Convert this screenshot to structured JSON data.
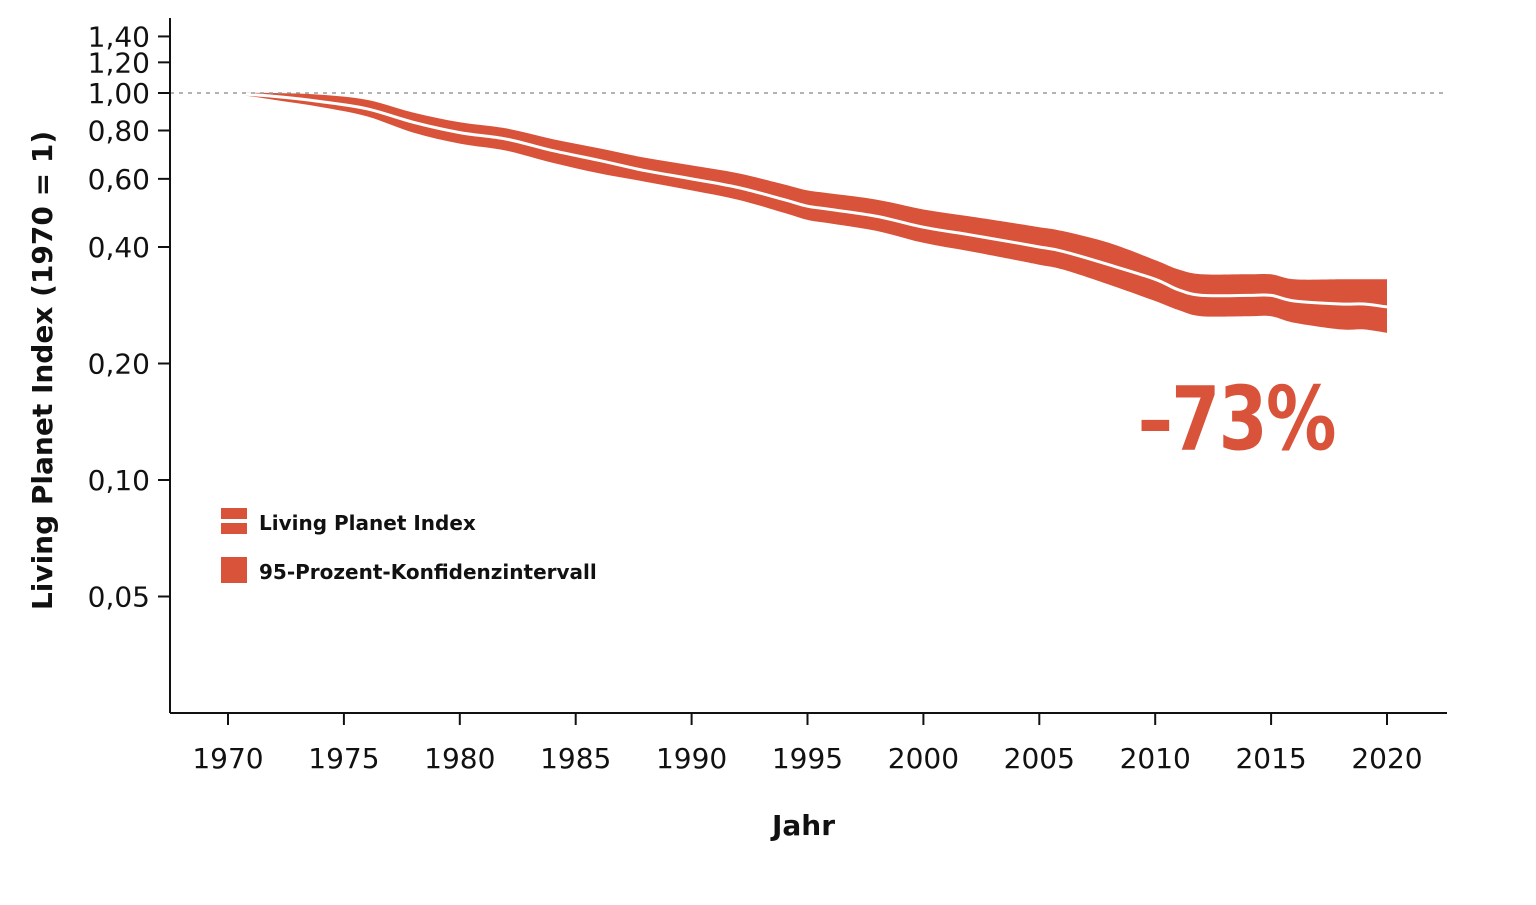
{
  "chart_data": {
    "type": "area",
    "xlabel": "Jahr",
    "ylabel": "Living Planet Index (1970 = 1)",
    "yscale": "log",
    "xlim": [
      1967.5,
      2022.5
    ],
    "ylim": [
      0.025,
      1.5
    ],
    "x_ticks": [
      1970,
      1975,
      1980,
      1985,
      1990,
      1995,
      2000,
      2005,
      2010,
      2015,
      2020
    ],
    "x_tick_labels": [
      "1970",
      "1975",
      "1980",
      "1985",
      "1990",
      "1995",
      "2000",
      "2005",
      "2010",
      "2015",
      "2020"
    ],
    "y_ticks": [
      0.05,
      0.1,
      0.2,
      0.4,
      0.6,
      0.8,
      1.0,
      1.2,
      1.4
    ],
    "y_tick_labels": [
      "0,05",
      "0,10",
      "0,20",
      "0,40",
      "0,60",
      "0,80",
      "1,00",
      "1,20",
      "1,40"
    ],
    "reference_line": 1.0,
    "grid": false,
    "legend_position": "lower-left",
    "legend": [
      {
        "label": "Living Planet Index",
        "kind": "line"
      },
      {
        "label": "95-Prozent-Konfidenzintervall",
        "kind": "band"
      }
    ],
    "annotation": {
      "text": "–73%",
      "x": 2013.5,
      "y": 0.12
    },
    "colors": {
      "band": "#d9533a",
      "line": "#ffffff",
      "axis": "#111111",
      "reference": "#9a9a9a"
    },
    "x": [
      1970,
      1972,
      1974,
      1976,
      1978,
      1980,
      1982,
      1984,
      1986,
      1988,
      1990,
      1992,
      1994,
      1995,
      1996,
      1998,
      2000,
      2002,
      2004,
      2005,
      2006,
      2008,
      2010,
      2011,
      2012,
      2014,
      2015,
      2016,
      2018,
      2019,
      2020
    ],
    "series": [
      {
        "name": "Living Planet Index",
        "values": [
          1.0,
          0.98,
          0.95,
          0.91,
          0.84,
          0.79,
          0.76,
          0.71,
          0.67,
          0.63,
          0.6,
          0.57,
          0.53,
          0.51,
          0.5,
          0.48,
          0.45,
          0.43,
          0.41,
          0.4,
          0.39,
          0.36,
          0.33,
          0.31,
          0.3,
          0.3,
          0.3,
          0.29,
          0.285,
          0.285,
          0.28
        ]
      },
      {
        "name": "lower",
        "values": [
          1.0,
          0.96,
          0.92,
          0.87,
          0.79,
          0.74,
          0.71,
          0.66,
          0.62,
          0.59,
          0.56,
          0.53,
          0.49,
          0.47,
          0.46,
          0.44,
          0.41,
          0.39,
          0.37,
          0.36,
          0.35,
          0.32,
          0.29,
          0.275,
          0.265,
          0.265,
          0.265,
          0.255,
          0.245,
          0.245,
          0.24
        ]
      },
      {
        "name": "upper",
        "values": [
          1.0,
          1.0,
          0.99,
          0.96,
          0.89,
          0.84,
          0.81,
          0.76,
          0.72,
          0.68,
          0.65,
          0.62,
          0.58,
          0.56,
          0.55,
          0.53,
          0.5,
          0.48,
          0.46,
          0.45,
          0.44,
          0.41,
          0.37,
          0.35,
          0.34,
          0.34,
          0.34,
          0.33,
          0.33,
          0.33,
          0.33
        ]
      }
    ]
  }
}
